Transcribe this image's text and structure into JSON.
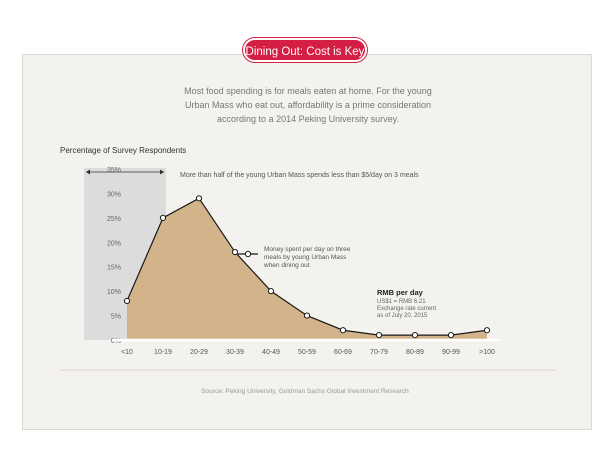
{
  "header": {
    "title": "Dining Out: Cost is Key"
  },
  "intro": {
    "line1": "Most food spending is for meals eaten at home. For the young",
    "line2": "Urban Mass who eat out, affordability is a prime consideration",
    "line3": "according to a 2014 Peking University survey."
  },
  "source": "Source: Peking University, Goldman Sachs Global Investment Research",
  "chart_data": {
    "type": "area",
    "title": "Percentage of Survey Respondents",
    "categories": [
      "<10",
      "10-19",
      "20-29",
      "30-39",
      "40-49",
      "50-59",
      "60-69",
      "70-79",
      "80-89",
      "90-99",
      ">100"
    ],
    "series": [
      {
        "name": "Money spent per day on three meals by young Urban Mass when dining out",
        "values": [
          8,
          25,
          29,
          18,
          10,
          5,
          2,
          1,
          1,
          1,
          2
        ]
      }
    ],
    "ylim": [
      0,
      35
    ],
    "yticks": [
      "0%",
      "5%",
      "10%",
      "15%",
      "20%",
      "25%",
      "30%",
      "35%"
    ],
    "legend_position": "center",
    "annotations": {
      "highlight": "More than half of the young Urban Mass spends less than $5/day on 3 meals",
      "rmb_title": "RMB per day",
      "rmb_rate": "US$1 = RMB 6.21",
      "rmb_note1": "Exchange rate current",
      "rmb_note2": "as of July 20, 2015"
    },
    "colors": {
      "fill": "#d3b48a",
      "line": "#1a1a1a",
      "highlight": "#dcdcdc",
      "accent": "#d41e43"
    }
  }
}
